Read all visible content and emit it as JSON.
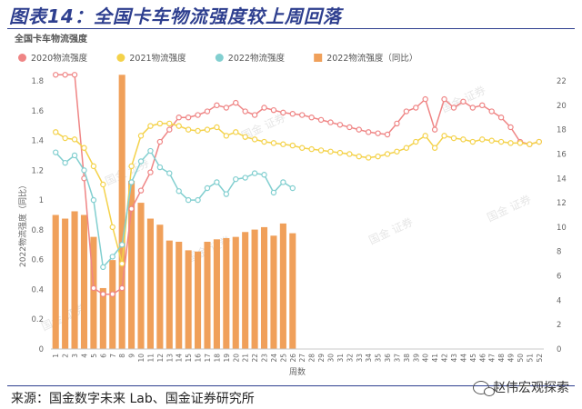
{
  "figure_title": "图表14：全国卡车物流强度较上周回落",
  "source_note": "来源：国金数字未来 Lab、国金证券研究所",
  "wechat_label": "赵伟宏观探索",
  "watermark": "国金 证券",
  "chart_data": {
    "type": "line",
    "chart_title": "全国卡车物流强度",
    "xlabel": "周数",
    "y2label": "2022物流强度（同比）",
    "x": [
      1,
      2,
      3,
      4,
      5,
      6,
      7,
      8,
      9,
      10,
      11,
      12,
      13,
      14,
      15,
      16,
      17,
      18,
      19,
      20,
      21,
      22,
      23,
      24,
      25,
      26,
      27,
      28,
      29,
      30,
      31,
      32,
      33,
      34,
      35,
      36,
      37,
      38,
      39,
      40,
      41,
      42,
      43,
      44,
      45,
      46,
      47,
      48,
      49,
      50,
      51,
      52
    ],
    "left_axis": {
      "min": 0,
      "max": 1.8,
      "ticks": [
        "0",
        "0.2",
        "0.4",
        "0.6",
        "0.8",
        "1",
        "1.2",
        "1.4",
        "1.6",
        "1.8"
      ]
    },
    "right_axis": {
      "min": 0,
      "max": 22,
      "ticks": [
        "0",
        "2",
        "4",
        "6",
        "8",
        "10",
        "12",
        "14",
        "16",
        "18",
        "20",
        "22"
      ]
    },
    "legend_position": "top",
    "grid": false,
    "colors": {
      "s2020": "#ef8585",
      "s2021": "#f4d24a",
      "s2022": "#82cfd0",
      "bars": "#f0a05a"
    },
    "series": [
      {
        "key": "s2020",
        "name": "2020物流强度",
        "type": "line",
        "axis": "right",
        "values": [
          22.5,
          22.5,
          22.5,
          14,
          5,
          4.5,
          4.5,
          5,
          11.5,
          13,
          14.5,
          17,
          18,
          19,
          19,
          19.2,
          19.5,
          20,
          19.8,
          20.2,
          19.5,
          19.2,
          19.8,
          19.6,
          19.4,
          19.3,
          19.2,
          19,
          18.8,
          18.6,
          18.4,
          18.2,
          18,
          17.8,
          17.7,
          17.6,
          18.5,
          19.5,
          19.8,
          20.5,
          18,
          20.5,
          19.8,
          20.3,
          19.8,
          20,
          19.5,
          19,
          18.2,
          17,
          16.8,
          17
        ]
      },
      {
        "key": "s2021",
        "name": "2021物流强度",
        "type": "line",
        "axis": "right",
        "values": [
          17.8,
          17.3,
          17.2,
          16.5,
          15,
          13.5,
          10,
          7,
          15,
          17.5,
          18.3,
          18.5,
          18.5,
          18.3,
          18,
          17.9,
          18,
          18.2,
          17.5,
          17.8,
          17.4,
          17.2,
          17,
          16.9,
          16.8,
          16.7,
          16.5,
          16.4,
          16.3,
          16.2,
          16.1,
          16,
          15.8,
          15.7,
          15.8,
          16,
          16.2,
          16.5,
          17,
          17.5,
          16.5,
          17.5,
          17.3,
          17.2,
          17,
          17.2,
          17.1,
          17,
          16.9,
          16.9,
          16.8,
          17
        ]
      },
      {
        "key": "s2022",
        "name": "2022物流强度",
        "type": "line",
        "axis": "left",
        "values": [
          1.32,
          1.25,
          1.3,
          1.2,
          1,
          0.55,
          0.62,
          0.7,
          1.12,
          1.26,
          1.33,
          1.22,
          1.18,
          1.06,
          1,
          1,
          1.08,
          1.12,
          1.04,
          1.14,
          1.15,
          1.18,
          1.17,
          1.05,
          1.12,
          1.08,
          null,
          null,
          null,
          null,
          null,
          null,
          null,
          null,
          null,
          null,
          null,
          null,
          null,
          null,
          null,
          null,
          null,
          null,
          null,
          null,
          null,
          null,
          null,
          null,
          null,
          null
        ]
      },
      {
        "key": "bars",
        "name": "2022物流强度（同比）",
        "type": "bar",
        "axis": "right",
        "values": [
          11,
          10.7,
          11.3,
          11,
          9.2,
          5,
          7.3,
          22.5,
          13.8,
          12,
          10.7,
          10.2,
          8.9,
          8.8,
          8.1,
          8,
          8.8,
          9,
          9.1,
          9.2,
          9.6,
          9.8,
          10,
          9.3,
          10.3,
          9.5,
          null,
          null,
          null,
          null,
          null,
          null,
          null,
          null,
          null,
          null,
          null,
          null,
          null,
          null,
          null,
          null,
          null,
          null,
          null,
          null,
          null,
          null,
          null,
          null,
          null,
          null
        ]
      }
    ]
  }
}
